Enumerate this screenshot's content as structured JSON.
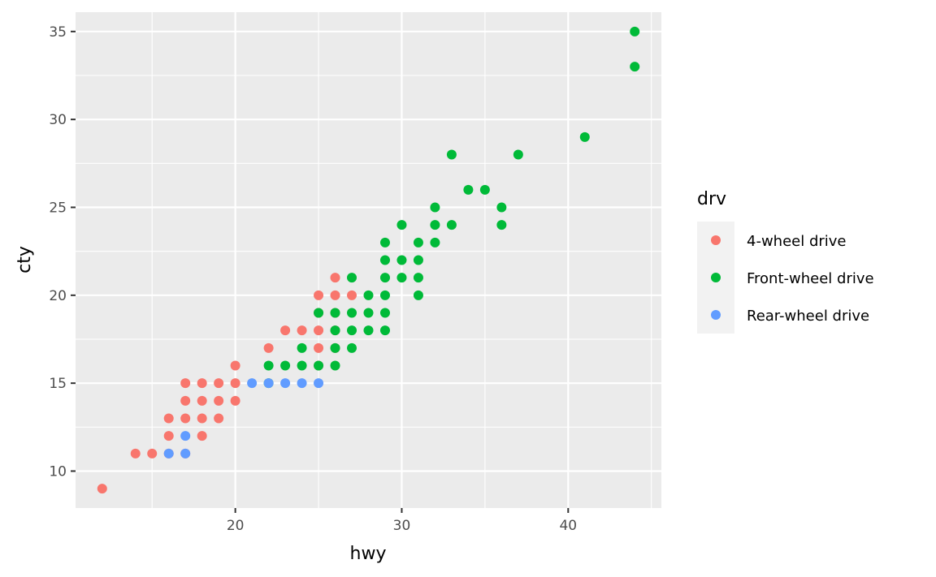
{
  "chart_data": {
    "type": "scatter",
    "xlabel": "hwy",
    "ylabel": "cty",
    "xlim": [
      10.4,
      45.6
    ],
    "ylim": [
      7.9,
      36.1
    ],
    "x_ticks": [
      20,
      30,
      40
    ],
    "y_ticks": [
      10,
      15,
      20,
      25,
      30,
      35
    ],
    "x_minor_ticks": [
      15,
      25,
      35,
      45
    ],
    "y_minor_ticks": [
      12.5,
      17.5,
      22.5,
      27.5,
      32.5
    ],
    "grid": true,
    "legend_position": "right",
    "legend": {
      "title": "drv",
      "entries": [
        {
          "key": "4",
          "label": "4-wheel drive",
          "color": "#F8766D"
        },
        {
          "key": "f",
          "label": "Front-wheel drive",
          "color": "#00BA38"
        },
        {
          "key": "r",
          "label": "Rear-wheel drive",
          "color": "#619CFF"
        }
      ]
    },
    "colors": {
      "panel_background": "#EBEBEB",
      "grid": "#FFFFFF",
      "tick_mark": "#333333",
      "tick_text": "#4D4D4D",
      "legend_key_background": "#F2F2F2"
    },
    "series": [
      {
        "name": "4-wheel drive",
        "color": "#F8766D",
        "points": [
          [
            12,
            9
          ],
          [
            14,
            11
          ],
          [
            15,
            11
          ],
          [
            16,
            11
          ],
          [
            16,
            12
          ],
          [
            16,
            13
          ],
          [
            17,
            11
          ],
          [
            17,
            13
          ],
          [
            17,
            14
          ],
          [
            17,
            15
          ],
          [
            18,
            12
          ],
          [
            18,
            13
          ],
          [
            18,
            14
          ],
          [
            18,
            15
          ],
          [
            19,
            13
          ],
          [
            19,
            14
          ],
          [
            19,
            15
          ],
          [
            20,
            14
          ],
          [
            20,
            15
          ],
          [
            20,
            16
          ],
          [
            22,
            17
          ],
          [
            23,
            18
          ],
          [
            24,
            18
          ],
          [
            25,
            16
          ],
          [
            25,
            17
          ],
          [
            25,
            18
          ],
          [
            25,
            19
          ],
          [
            25,
            20
          ],
          [
            26,
            17
          ],
          [
            26,
            18
          ],
          [
            26,
            19
          ],
          [
            26,
            20
          ],
          [
            26,
            21
          ],
          [
            27,
            20
          ]
        ]
      },
      {
        "name": "Front-wheel drive",
        "color": "#00BA38",
        "points": [
          [
            22,
            15
          ],
          [
            22,
            16
          ],
          [
            23,
            16
          ],
          [
            24,
            16
          ],
          [
            24,
            17
          ],
          [
            25,
            16
          ],
          [
            25,
            19
          ],
          [
            26,
            16
          ],
          [
            26,
            17
          ],
          [
            26,
            18
          ],
          [
            26,
            19
          ],
          [
            27,
            17
          ],
          [
            27,
            18
          ],
          [
            27,
            19
          ],
          [
            27,
            21
          ],
          [
            28,
            18
          ],
          [
            28,
            19
          ],
          [
            28,
            20
          ],
          [
            29,
            18
          ],
          [
            29,
            19
          ],
          [
            29,
            20
          ],
          [
            29,
            21
          ],
          [
            29,
            22
          ],
          [
            29,
            23
          ],
          [
            30,
            21
          ],
          [
            30,
            22
          ],
          [
            30,
            24
          ],
          [
            31,
            20
          ],
          [
            31,
            21
          ],
          [
            31,
            22
          ],
          [
            31,
            23
          ],
          [
            32,
            23
          ],
          [
            32,
            24
          ],
          [
            32,
            25
          ],
          [
            33,
            24
          ],
          [
            33,
            28
          ],
          [
            34,
            26
          ],
          [
            35,
            26
          ],
          [
            36,
            24
          ],
          [
            36,
            25
          ],
          [
            37,
            28
          ],
          [
            41,
            29
          ],
          [
            44,
            33
          ],
          [
            44,
            35
          ]
        ]
      },
      {
        "name": "Rear-wheel drive",
        "color": "#619CFF",
        "points": [
          [
            16,
            11
          ],
          [
            17,
            11
          ],
          [
            17,
            12
          ],
          [
            21,
            15
          ],
          [
            22,
            15
          ],
          [
            23,
            15
          ],
          [
            24,
            15
          ],
          [
            25,
            15
          ]
        ]
      }
    ]
  }
}
